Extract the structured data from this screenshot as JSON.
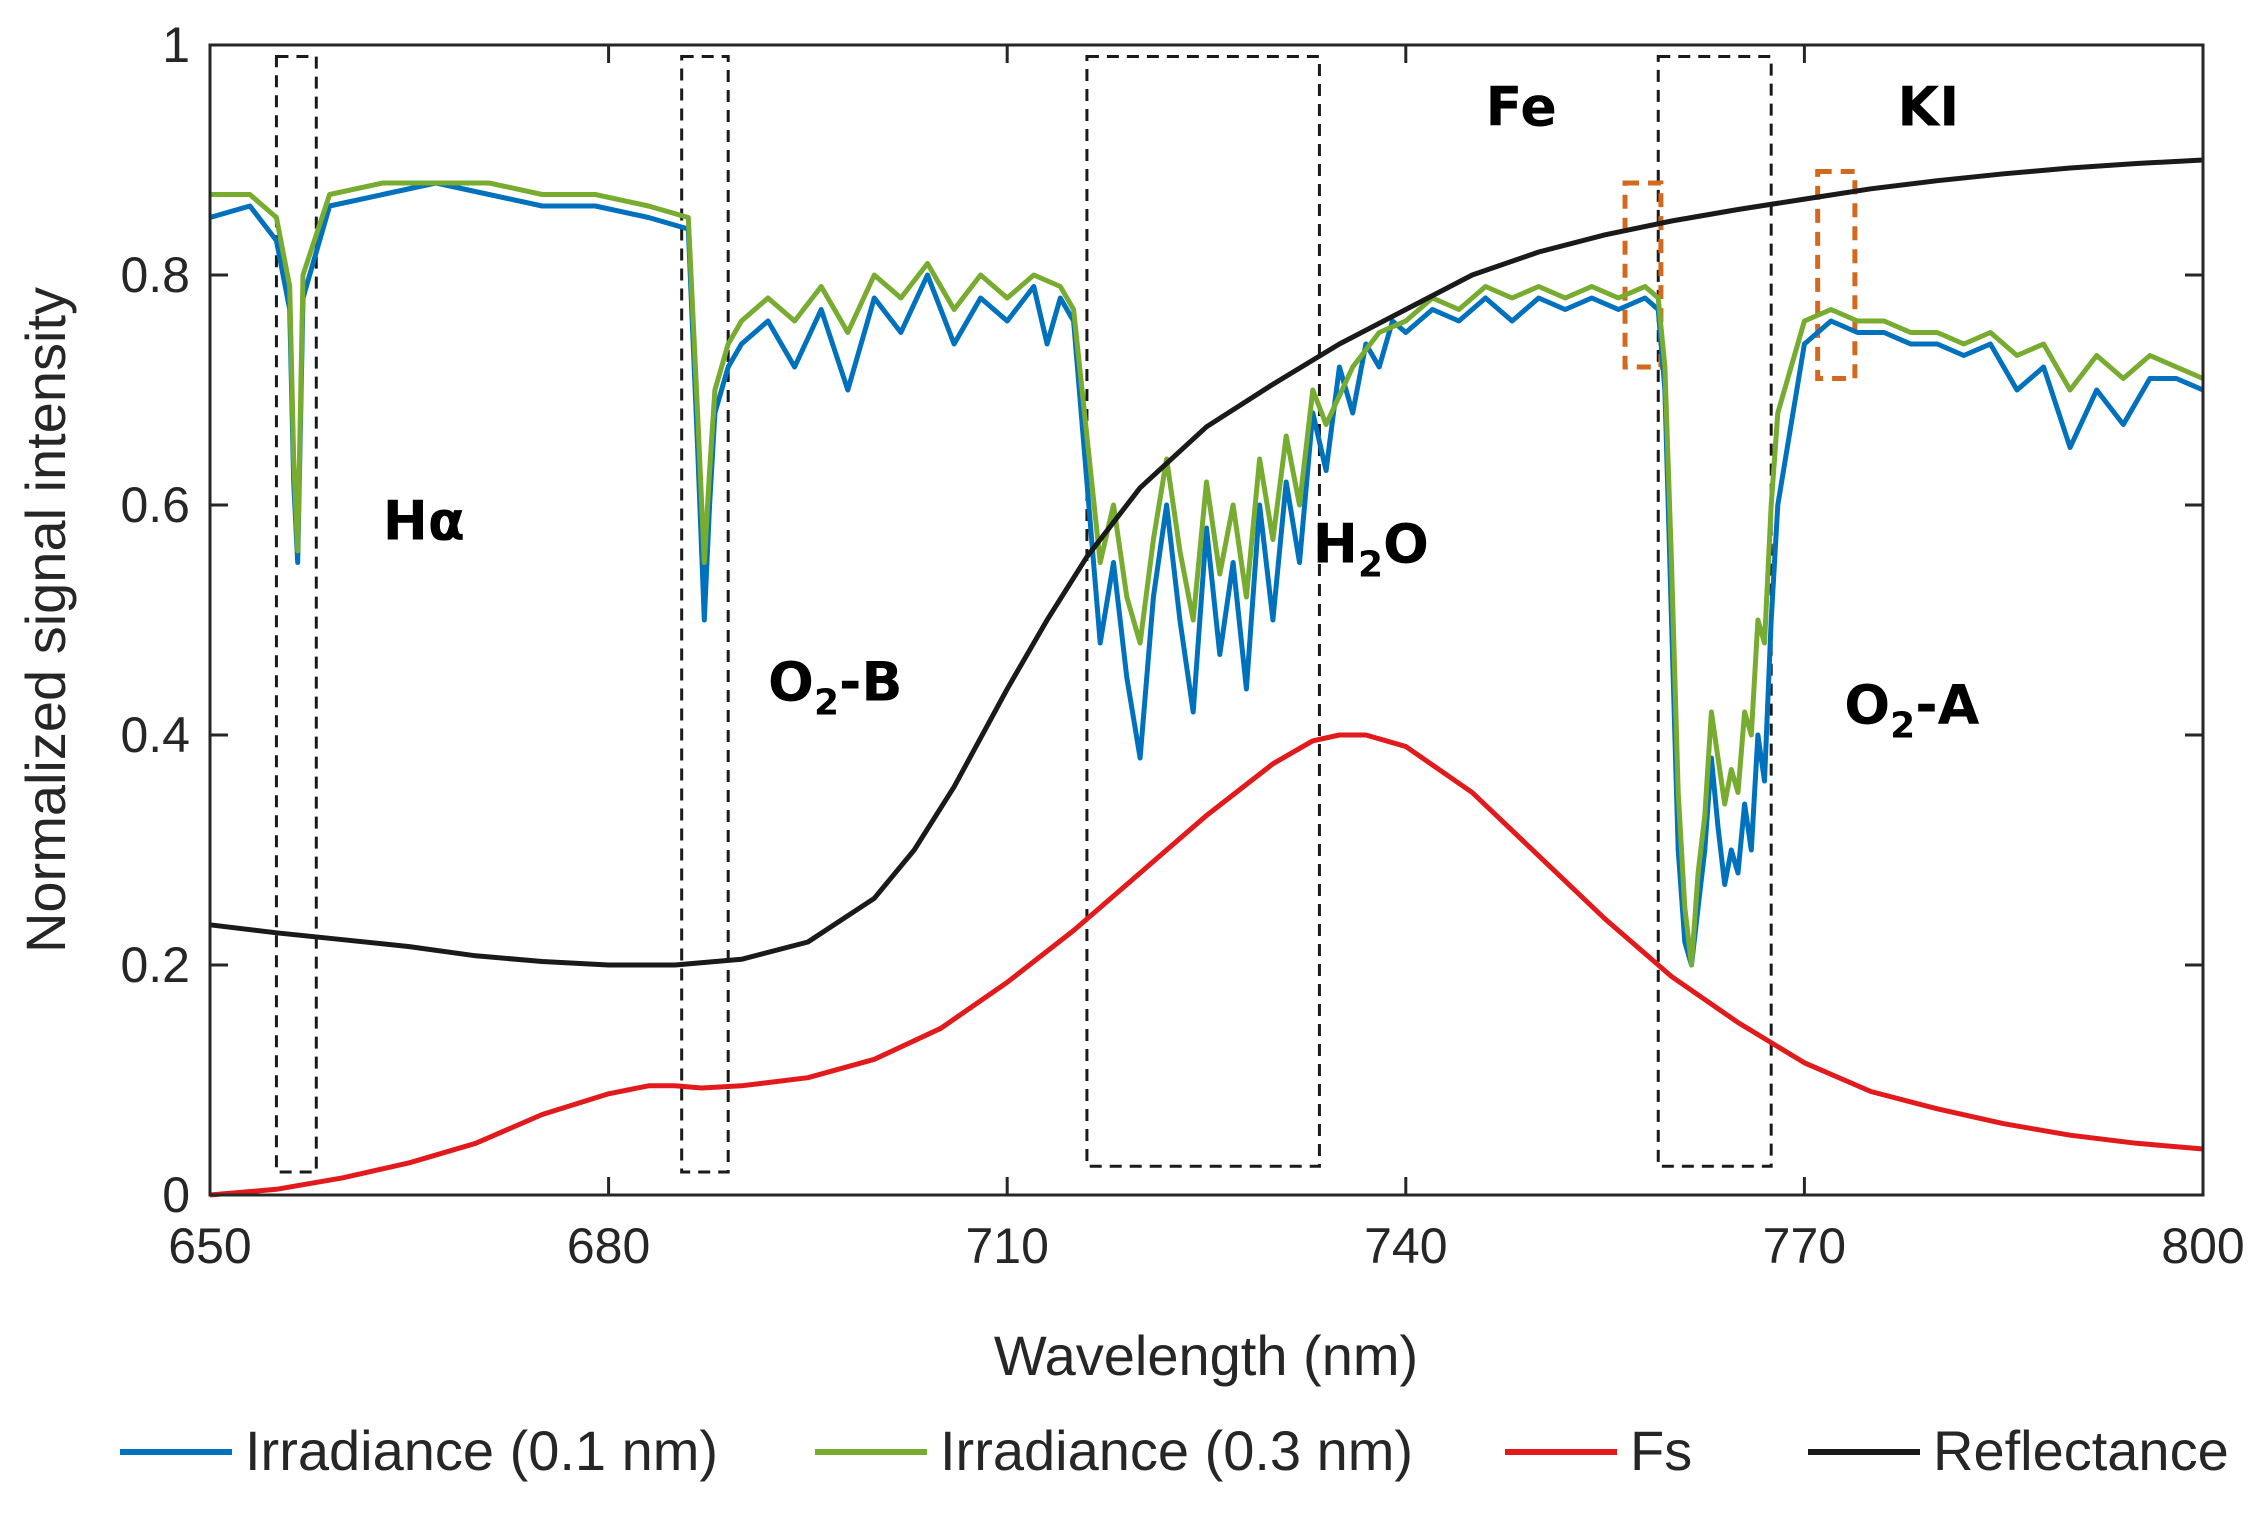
{
  "chart_data": {
    "type": "line",
    "xlabel": "Wavelength (nm)",
    "ylabel": "Normalized signal intensity",
    "xlim": [
      650,
      800
    ],
    "ylim": [
      0,
      1
    ],
    "xticks": [
      650,
      680,
      710,
      740,
      770,
      800
    ],
    "yticks": [
      0,
      0.2,
      0.4,
      0.6,
      0.8,
      1
    ],
    "ytick_labels": [
      "0",
      "0.2",
      "0.4",
      "0.6",
      "0.8",
      "1"
    ],
    "grid": false,
    "legend_position": "bottom",
    "series": [
      {
        "name": "Irradiance (0.1 nm)",
        "color": "#0072BD",
        "x": [
          650,
          653,
          655,
          656,
          656.3,
          656.6,
          657,
          659,
          663,
          667,
          671,
          675,
          679,
          683,
          686,
          686.7,
          687.2,
          687.6,
          688,
          689,
          690,
          692,
          694,
          696,
          698,
          700,
          702,
          704,
          706,
          708,
          710,
          712,
          713,
          714,
          715,
          716,
          717,
          718,
          719,
          720,
          721,
          722,
          723,
          724,
          725,
          726,
          727,
          728,
          729,
          730,
          731,
          732,
          733,
          734,
          735,
          736,
          737,
          738,
          739,
          740,
          742,
          744,
          746,
          748,
          750,
          752,
          754,
          756,
          758,
          759,
          759.5,
          760,
          760.5,
          761,
          761.5,
          762,
          762.5,
          763,
          763.5,
          764,
          764.5,
          765,
          765.5,
          766,
          766.5,
          767,
          767.5,
          768,
          770,
          772,
          774,
          776,
          778,
          780,
          782,
          784,
          786,
          788,
          790,
          792,
          794,
          796,
          798,
          800
        ],
        "y": [
          0.85,
          0.86,
          0.83,
          0.77,
          0.62,
          0.55,
          0.78,
          0.86,
          0.87,
          0.88,
          0.87,
          0.86,
          0.86,
          0.85,
          0.84,
          0.65,
          0.5,
          0.6,
          0.68,
          0.72,
          0.74,
          0.76,
          0.72,
          0.77,
          0.7,
          0.78,
          0.75,
          0.8,
          0.74,
          0.78,
          0.76,
          0.79,
          0.74,
          0.78,
          0.76,
          0.62,
          0.48,
          0.55,
          0.45,
          0.38,
          0.52,
          0.6,
          0.5,
          0.42,
          0.58,
          0.47,
          0.55,
          0.44,
          0.6,
          0.5,
          0.62,
          0.55,
          0.68,
          0.63,
          0.72,
          0.68,
          0.74,
          0.72,
          0.76,
          0.75,
          0.77,
          0.76,
          0.78,
          0.76,
          0.78,
          0.77,
          0.78,
          0.77,
          0.78,
          0.77,
          0.7,
          0.5,
          0.3,
          0.22,
          0.2,
          0.25,
          0.3,
          0.38,
          0.32,
          0.27,
          0.3,
          0.28,
          0.34,
          0.3,
          0.4,
          0.36,
          0.5,
          0.6,
          0.74,
          0.76,
          0.75,
          0.75,
          0.74,
          0.74,
          0.73,
          0.74,
          0.7,
          0.72,
          0.65,
          0.7,
          0.67,
          0.71,
          0.71,
          0.7
        ]
      },
      {
        "name": "Irradiance (0.3 nm)",
        "color": "#77AC30",
        "x": [
          650,
          653,
          655,
          656,
          656.3,
          656.6,
          657,
          659,
          663,
          667,
          671,
          675,
          679,
          683,
          686,
          686.7,
          687.2,
          687.6,
          688,
          689,
          690,
          692,
          694,
          696,
          698,
          700,
          702,
          704,
          706,
          708,
          710,
          712,
          714,
          715,
          716,
          717,
          718,
          719,
          720,
          721,
          722,
          723,
          724,
          725,
          726,
          727,
          728,
          729,
          730,
          731,
          732,
          733,
          734,
          736,
          738,
          740,
          742,
          744,
          746,
          748,
          750,
          752,
          754,
          756,
          758,
          759,
          759.5,
          760,
          760.5,
          761,
          761.5,
          762,
          762.5,
          763,
          763.5,
          764,
          764.5,
          765,
          765.5,
          766,
          766.5,
          767,
          767.5,
          768,
          770,
          772,
          774,
          776,
          778,
          780,
          782,
          784,
          786,
          788,
          790,
          792,
          794,
          796,
          798,
          800
        ],
        "y": [
          0.87,
          0.87,
          0.85,
          0.79,
          0.64,
          0.56,
          0.8,
          0.87,
          0.88,
          0.88,
          0.88,
          0.87,
          0.87,
          0.86,
          0.85,
          0.68,
          0.55,
          0.63,
          0.7,
          0.74,
          0.76,
          0.78,
          0.76,
          0.79,
          0.75,
          0.8,
          0.78,
          0.81,
          0.77,
          0.8,
          0.78,
          0.8,
          0.79,
          0.77,
          0.66,
          0.55,
          0.6,
          0.52,
          0.48,
          0.57,
          0.64,
          0.56,
          0.5,
          0.62,
          0.54,
          0.6,
          0.52,
          0.64,
          0.57,
          0.66,
          0.6,
          0.7,
          0.67,
          0.72,
          0.75,
          0.76,
          0.78,
          0.77,
          0.79,
          0.78,
          0.79,
          0.78,
          0.79,
          0.78,
          0.79,
          0.78,
          0.72,
          0.55,
          0.35,
          0.25,
          0.2,
          0.28,
          0.33,
          0.42,
          0.38,
          0.34,
          0.37,
          0.35,
          0.42,
          0.4,
          0.5,
          0.48,
          0.6,
          0.68,
          0.76,
          0.77,
          0.76,
          0.76,
          0.75,
          0.75,
          0.74,
          0.75,
          0.73,
          0.74,
          0.7,
          0.73,
          0.71,
          0.73,
          0.72,
          0.71
        ]
      },
      {
        "name": "Fs",
        "color": "#E31A1C",
        "x": [
          650,
          655,
          660,
          665,
          670,
          675,
          680,
          683,
          685,
          687,
          690,
          695,
          700,
          705,
          710,
          715,
          720,
          725,
          730,
          733,
          735,
          737,
          740,
          745,
          750,
          755,
          760,
          765,
          770,
          775,
          780,
          785,
          790,
          795,
          800
        ],
        "y": [
          0.0,
          0.005,
          0.015,
          0.028,
          0.045,
          0.07,
          0.088,
          0.095,
          0.095,
          0.093,
          0.095,
          0.102,
          0.118,
          0.145,
          0.185,
          0.23,
          0.28,
          0.33,
          0.375,
          0.395,
          0.4,
          0.4,
          0.39,
          0.35,
          0.295,
          0.24,
          0.19,
          0.15,
          0.115,
          0.09,
          0.075,
          0.062,
          0.052,
          0.045,
          0.04
        ]
      },
      {
        "name": "Reflectance",
        "color": "#1A1A1A",
        "x": [
          650,
          655,
          660,
          665,
          670,
          675,
          680,
          685,
          690,
          695,
          700,
          703,
          706,
          710,
          713,
          716,
          720,
          725,
          730,
          735,
          740,
          745,
          750,
          755,
          760,
          765,
          770,
          775,
          780,
          785,
          790,
          795,
          800
        ],
        "y": [
          0.235,
          0.228,
          0.222,
          0.216,
          0.208,
          0.203,
          0.2,
          0.2,
          0.205,
          0.22,
          0.258,
          0.3,
          0.355,
          0.44,
          0.5,
          0.555,
          0.615,
          0.668,
          0.705,
          0.74,
          0.77,
          0.8,
          0.82,
          0.835,
          0.847,
          0.857,
          0.866,
          0.875,
          0.882,
          0.888,
          0.893,
          0.897,
          0.9
        ]
      }
    ],
    "annotations": [
      {
        "main": "Hα",
        "x": 663,
        "y": 0.57
      },
      {
        "main": "O",
        "sub": "2",
        "tail": "-B",
        "x": 692,
        "y": 0.43
      },
      {
        "main": "H",
        "sub": "2",
        "tail": "O",
        "x": 733,
        "y": 0.55
      },
      {
        "main": "Fe",
        "x": 746,
        "y": 0.93
      },
      {
        "main": "KI",
        "x": 777,
        "y": 0.93
      },
      {
        "main": "O",
        "sub": "2",
        "tail": "-A",
        "x": 773,
        "y": 0.41
      }
    ],
    "regions": [
      {
        "x0": 655,
        "x1": 658,
        "y0": 0.02,
        "y1": 0.99,
        "style": "black-dashed"
      },
      {
        "x0": 685.5,
        "x1": 689,
        "y0": 0.02,
        "y1": 0.99,
        "style": "black-dashed"
      },
      {
        "x0": 716,
        "x1": 733.5,
        "y0": 0.025,
        "y1": 0.99,
        "style": "black-dashed"
      },
      {
        "x0": 759,
        "x1": 767.5,
        "y0": 0.025,
        "y1": 0.99,
        "style": "black-dashed"
      },
      {
        "x0": 756.5,
        "x1": 759.2,
        "y0": 0.72,
        "y1": 0.88,
        "style": "orange-dashed"
      },
      {
        "x0": 771,
        "x1": 773.8,
        "y0": 0.71,
        "y1": 0.89,
        "style": "orange-dashed"
      }
    ]
  }
}
